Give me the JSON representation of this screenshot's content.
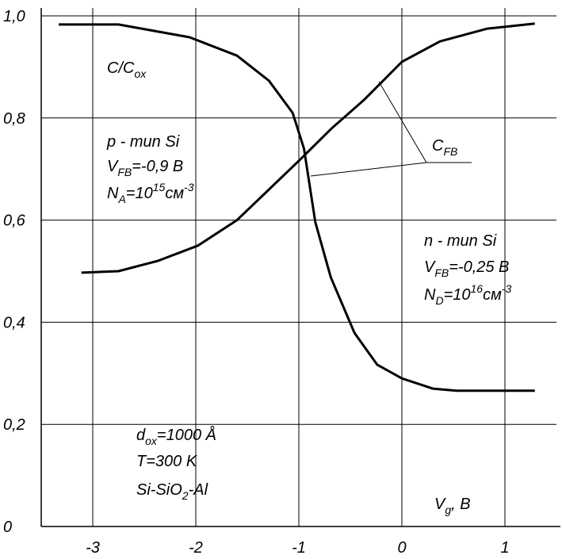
{
  "chart_data": {
    "type": "line",
    "xlim": [
      -3.5,
      1.5
    ],
    "ylim": [
      0,
      1
    ],
    "xticks": [
      -3,
      -2,
      -1,
      0,
      1
    ],
    "yticks": [
      {
        "value": 0,
        "label": "0"
      },
      {
        "value": 0.2,
        "label": "0,2"
      },
      {
        "value": 0.4,
        "label": "0,4"
      },
      {
        "value": 0.6,
        "label": "0,6"
      },
      {
        "value": 0.8,
        "label": "0,8"
      },
      {
        "value": 1,
        "label": "1,0"
      }
    ],
    "grid": true,
    "series": [
      {
        "color": "#000000",
        "x": [
          -3.33,
          -2.75,
          -2.06,
          -1.6,
          -1.29,
          -1.06,
          -0.95,
          -0.84,
          -0.69,
          -0.46,
          -0.24,
          0,
          0.3,
          0.53,
          1.29
        ],
        "values": [
          0.983,
          0.983,
          0.958,
          0.922,
          0.873,
          0.81,
          0.74,
          0.596,
          0.488,
          0.379,
          0.317,
          0.29,
          0.27,
          0.266,
          0.266
        ]
      },
      {
        "color": "#000000",
        "x": [
          -3.11,
          -2.75,
          -2.37,
          -1.98,
          -1.6,
          -1.29,
          -0.98,
          -0.68,
          -0.37,
          0,
          0.37,
          0.83,
          1.29
        ],
        "values": [
          0.497,
          0.5,
          0.52,
          0.55,
          0.6,
          0.66,
          0.72,
          0.78,
          0.835,
          0.91,
          0.95,
          0.975,
          0.985
        ]
      }
    ],
    "annotations": [
      {
        "segments": [
          {
            "text": "C/C"
          },
          {
            "text": "ox",
            "shift": "sub"
          }
        ]
      },
      {
        "segments": [
          {
            "text": "p - mun Si"
          }
        ]
      },
      {
        "segments": [
          {
            "text": "V"
          },
          {
            "text": "FB",
            "shift": "sub"
          },
          {
            "text": "=-0,9 B"
          }
        ]
      },
      {
        "segments": [
          {
            "text": "N"
          },
          {
            "text": "A",
            "shift": "sub"
          },
          {
            "text": "=10"
          },
          {
            "text": "15",
            "shift": "super"
          },
          {
            "text": "см"
          },
          {
            "text": "-3",
            "shift": "super"
          }
        ]
      },
      {
        "segments": [
          {
            "text": "C"
          },
          {
            "text": "FB",
            "shift": "sub"
          }
        ]
      },
      {
        "segments": [
          {
            "text": "n - mun Si"
          }
        ]
      },
      {
        "segments": [
          {
            "text": "V"
          },
          {
            "text": "FB",
            "shift": "sub"
          },
          {
            "text": "=-0,25 B"
          }
        ]
      },
      {
        "segments": [
          {
            "text": "N"
          },
          {
            "text": "D",
            "shift": "sub"
          },
          {
            "text": "=10"
          },
          {
            "text": "16",
            "shift": "super"
          },
          {
            "text": "см"
          },
          {
            "text": "-3",
            "shift": "super"
          }
        ]
      },
      {
        "segments": [
          {
            "text": "d"
          },
          {
            "text": "ox",
            "shift": "sub"
          },
          {
            "text": "=1000 Å"
          }
        ]
      },
      {
        "segments": [
          {
            "text": "T=300 K"
          }
        ]
      },
      {
        "segments": [
          {
            "text": "Si-SiO"
          },
          {
            "text": "2",
            "shift": "sub"
          },
          {
            "text": "-Al"
          }
        ]
      },
      {
        "segments": [
          {
            "text": "V"
          },
          {
            "text": "g",
            "shift": "sub"
          },
          {
            "text": ", B"
          }
        ]
      }
    ]
  }
}
